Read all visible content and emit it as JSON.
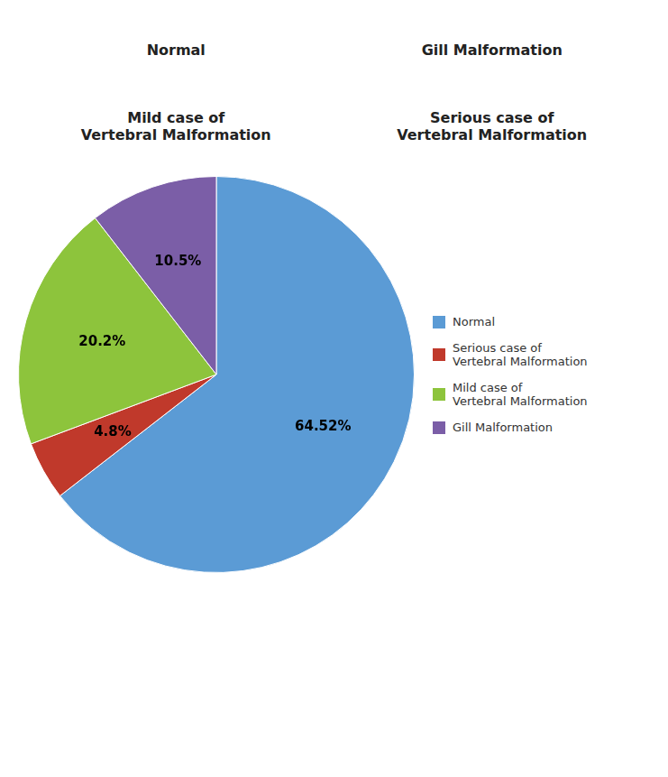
{
  "chart_data": {
    "type": "pie",
    "categories": [
      "Normal",
      "Serious case of\n Vertebral Malformation",
      "Mild case of\n Vertebral Malformation",
      "Gill Malformation"
    ],
    "values": [
      64.52,
      4.8,
      20.2,
      10.5
    ],
    "value_labels": [
      "64.52%",
      "4.8%",
      "20.2%",
      "10.5%"
    ],
    "colors": [
      "#5B9BD5",
      "#C0392B",
      "#8DC43C",
      "#7B5EA7"
    ],
    "data_labels": true,
    "legend": "right",
    "annotations": [
      "Normal",
      "Gill Malformation",
      "Mild case of\nVertebral Malformation",
      "Serious case of\nVertebral Malformation"
    ]
  }
}
